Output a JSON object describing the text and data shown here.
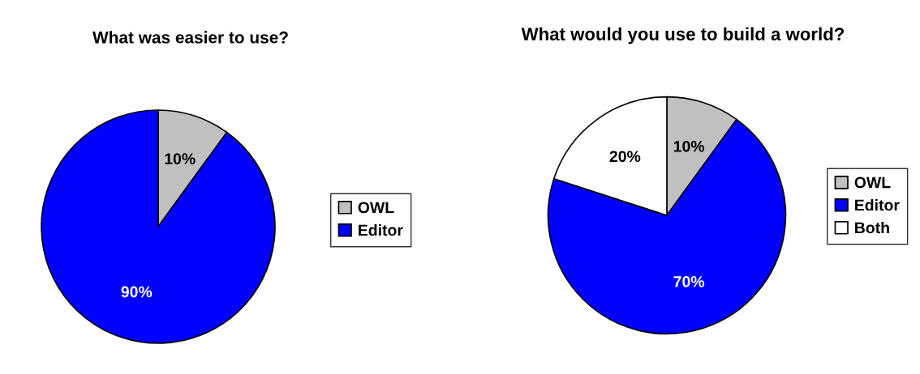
{
  "chart_data": [
    {
      "type": "pie",
      "title": "What was easier to use?",
      "categories": [
        "OWL",
        "Editor"
      ],
      "values": [
        10,
        90
      ],
      "colors": [
        "#c0c0c0",
        "#0000ff"
      ],
      "value_labels": [
        "10%",
        "90%"
      ],
      "legend": "right"
    },
    {
      "type": "pie",
      "title": "What would you use to build a world?",
      "categories": [
        "OWL",
        "Editor",
        "Both"
      ],
      "values": [
        10,
        70,
        20
      ],
      "colors": [
        "#c0c0c0",
        "#0000ff",
        "#ffffff"
      ],
      "value_labels": [
        "10%",
        "70%",
        "20%"
      ],
      "legend": "right"
    }
  ]
}
